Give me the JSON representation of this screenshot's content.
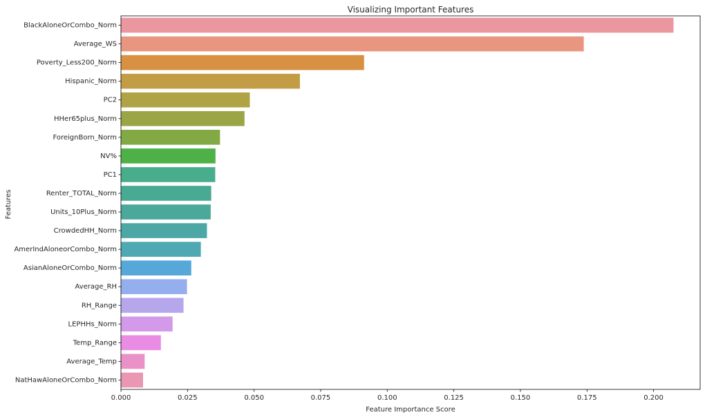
{
  "chart_data": {
    "type": "bar",
    "orientation": "horizontal",
    "title": "Visualizing Important Features",
    "xlabel": "Feature Importance Score",
    "ylabel": "Features",
    "xlim": [
      0,
      0.2175
    ],
    "xticks": [
      "0.000",
      "0.025",
      "0.050",
      "0.075",
      "0.100",
      "0.125",
      "0.150",
      "0.175",
      "0.200"
    ],
    "grid": false,
    "categories": [
      "BlackAloneOrCombo_Norm",
      "Average_WS",
      "Poverty_Less200_Norm",
      "Hispanic_Norm",
      "PC2",
      "HHer65plus_Norm",
      "ForeignBorn_Norm",
      "NV%",
      "PC1",
      "Renter_TOTAL_Norm",
      "Units_10Plus_Norm",
      "CrowdedHH_Norm",
      "AmerIndAloneorCombo_Norm",
      "AsianAloneOrCombo_Norm",
      "Average_RH",
      "RH_Range",
      "LEPHHs_Norm",
      "Temp_Range",
      "Average_Temp",
      "NatHawAloneOrCombo_Norm"
    ],
    "values": [
      0.2075,
      0.1738,
      0.0913,
      0.0672,
      0.0484,
      0.0464,
      0.0372,
      0.0355,
      0.0354,
      0.0339,
      0.0337,
      0.0323,
      0.03,
      0.0264,
      0.0248,
      0.0235,
      0.0194,
      0.015,
      0.0089,
      0.0083
    ],
    "colors": [
      "#eb97a0",
      "#e89680",
      "#d89143",
      "#c29d46",
      "#afa345",
      "#9ba545",
      "#83a945",
      "#4db148",
      "#48ad8c",
      "#49aa93",
      "#4aa99a",
      "#4ca7a5",
      "#4ea9b2",
      "#55a8d8",
      "#95aeed",
      "#b6a7ed",
      "#d29ae8",
      "#ea8ce3",
      "#ea92c8",
      "#ea97b4"
    ]
  }
}
